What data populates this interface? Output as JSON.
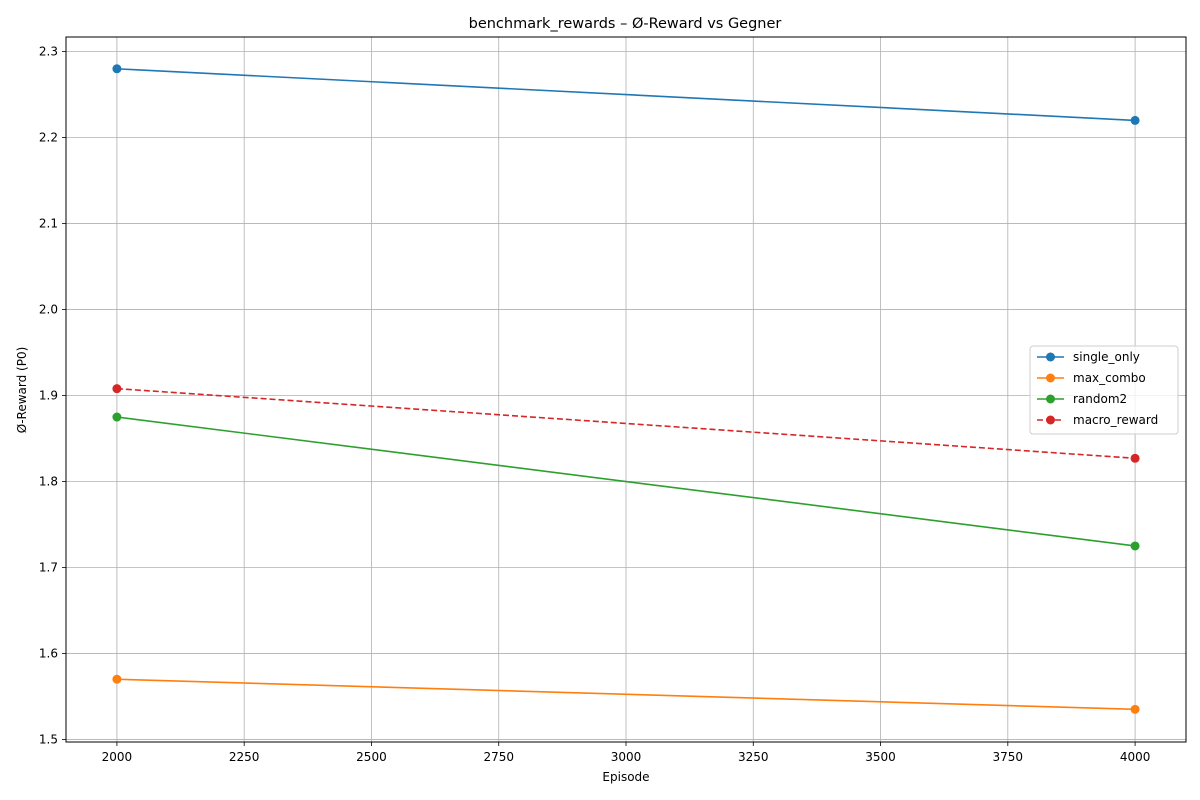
{
  "chart_data": {
    "type": "line",
    "title": "benchmark_rewards – Ø-Reward vs Gegner",
    "xlabel": "Episode",
    "ylabel": "Ø-Reward (P0)",
    "x": [
      2000,
      4000
    ],
    "xlim": [
      1900,
      4100
    ],
    "ylim": [
      1.497,
      2.317
    ],
    "xticks": [
      2000,
      2250,
      2500,
      2750,
      3000,
      3250,
      3500,
      3750,
      4000
    ],
    "yticks": [
      1.5,
      1.6,
      1.7,
      1.8,
      1.9,
      2.0,
      2.1,
      2.2,
      2.3
    ],
    "grid": true,
    "legend_position": "center-right",
    "series": [
      {
        "name": "single_only",
        "values": [
          2.28,
          2.22
        ],
        "color": "#1f77b4",
        "dashed": false
      },
      {
        "name": "max_combo",
        "values": [
          1.57,
          1.535
        ],
        "color": "#ff7f0e",
        "dashed": false
      },
      {
        "name": "random2",
        "values": [
          1.875,
          1.725
        ],
        "color": "#2ca02c",
        "dashed": false
      },
      {
        "name": "macro_reward",
        "values": [
          1.908,
          1.827
        ],
        "color": "#d62728",
        "dashed": true
      }
    ]
  }
}
